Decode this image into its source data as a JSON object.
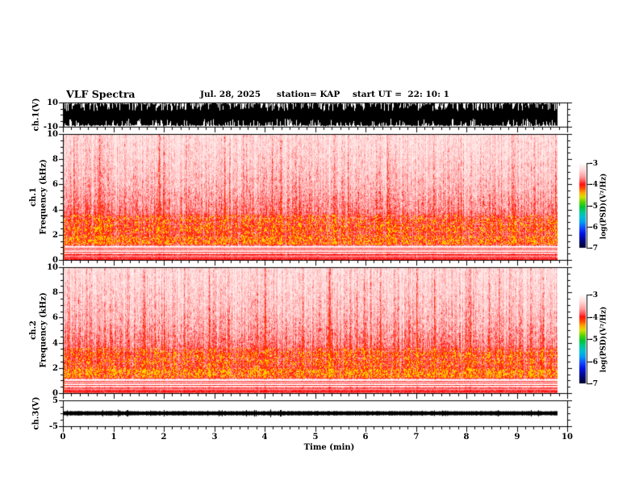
{
  "figure": {
    "title": "VLF Spectra",
    "date": "Jul. 28, 2025",
    "station": "station= KAP",
    "start_ut": "start UT =  22: 10: 1"
  },
  "time_axis": {
    "label": "Time (min)",
    "tick_labels": [
      "0",
      "1",
      "2",
      "3",
      "4",
      "5",
      "6",
      "7",
      "8",
      "9",
      "10"
    ],
    "minutes_total": 10,
    "data_minutes": 9.8,
    "minor_divisions_per_minute": 6
  },
  "panels": [
    {
      "kind": "waveform",
      "channel": "ch.1(V)",
      "ymin": -10,
      "ymax": 10,
      "ytick_labels": [
        "10",
        "-10"
      ],
      "ytick_values": [
        10,
        -10
      ],
      "yminor_values": [
        5,
        0,
        -5
      ]
    },
    {
      "kind": "spectrogram",
      "channel": "ch.1",
      "ylabel": "Frequency (kHz)",
      "ymin": 0,
      "ymax": 10,
      "ytick_labels": [
        "10",
        "8",
        "6",
        "4",
        "2",
        "0"
      ],
      "ytick_values": [
        10,
        8,
        6,
        4,
        2,
        0
      ],
      "yminor_step": 0.5
    },
    {
      "kind": "spectrogram",
      "channel": "ch.2",
      "ylabel": "Frequency (kHz)",
      "ymin": 0,
      "ymax": 10,
      "ytick_labels": [
        "10",
        "8",
        "6",
        "4",
        "2",
        "0"
      ],
      "ytick_values": [
        10,
        8,
        6,
        4,
        2,
        0
      ],
      "yminor_step": 0.5
    },
    {
      "kind": "waveform",
      "channel": "ch.3(V)",
      "ymin": -5,
      "ymax": 5,
      "ytick_labels": [
        "5",
        "-5"
      ],
      "ytick_values": [
        5,
        -5
      ],
      "yminor_values": [
        2.5,
        0,
        -2.5
      ]
    }
  ],
  "colorbar": {
    "label": "log(PSD)(V²/Hz)",
    "tick_labels": [
      "-3",
      "-4",
      "-5",
      "-6",
      "-7"
    ],
    "zmax": -3,
    "zmin": -7,
    "stops": [
      [
        0,
        "#ffffff"
      ],
      [
        0.08,
        "#ffd9d9"
      ],
      [
        0.16,
        "#ff9d9d"
      ],
      [
        0.22,
        "#ff4b4b"
      ],
      [
        0.25,
        "#ff1010"
      ],
      [
        0.3,
        "#ff4d00"
      ],
      [
        0.35,
        "#ffa600"
      ],
      [
        0.4,
        "#d8e000"
      ],
      [
        0.46,
        "#58d400"
      ],
      [
        0.52,
        "#00c432"
      ],
      [
        0.58,
        "#00c894"
      ],
      [
        0.64,
        "#00bcd8"
      ],
      [
        0.7,
        "#009cf0"
      ],
      [
        0.76,
        "#1450ff"
      ],
      [
        0.83,
        "#0014e6"
      ],
      [
        0.9,
        "#000896"
      ],
      [
        1,
        "#000428"
      ]
    ]
  },
  "chart_data": [
    {
      "type": "line",
      "name": "ch.1 waveform",
      "ylabel": "ch.1(V)",
      "xlim": [
        0,
        10
      ],
      "ylim": [
        -10,
        10
      ],
      "data_extent_min": 9.8,
      "description": "broadband noise, envelope fills most of ±10 V",
      "envelope_half_range_v": [
        3,
        10
      ],
      "seed": 101
    },
    {
      "type": "heatmap",
      "name": "ch.1 spectrogram",
      "xlabel": "Time (min)",
      "ylabel": "Frequency (kHz)",
      "zlabel": "log(PSD)(V²/Hz)",
      "xlim": [
        0,
        10
      ],
      "ylim": [
        0,
        10
      ],
      "zlim": [
        -7,
        -3
      ],
      "background_profile": [
        [
          0,
          0.55
        ],
        [
          0.22,
          0.58
        ],
        [
          0.48,
          0.58
        ],
        [
          0.54,
          0.06
        ],
        [
          1.1,
          0.06
        ],
        [
          1.22,
          0.64
        ],
        [
          3.2,
          0.62
        ],
        [
          3.6,
          0.58
        ],
        [
          4.0,
          0.53
        ],
        [
          4.5,
          0.47
        ],
        [
          5,
          0.41
        ],
        [
          5.5,
          0.36
        ],
        [
          6,
          0.32
        ],
        [
          7,
          0.27
        ],
        [
          8,
          0.23
        ],
        [
          9,
          0.2
        ],
        [
          10,
          0.18
        ]
      ],
      "tonal_lines_khz": [
        0.98,
        0.815,
        0.655
      ],
      "speckle_bands": [
        {
          "f": [
            1.25,
            1.95
          ],
          "prob": 0.3
        },
        {
          "f": [
            1.95,
            2.3
          ],
          "prob": 0.1
        },
        {
          "f": [
            2.3,
            3.6
          ],
          "prob": 0.17
        }
      ],
      "vertical_streak_prob": 0.1,
      "seed": 7
    },
    {
      "type": "heatmap",
      "name": "ch.2 spectrogram",
      "xlabel": "Time (min)",
      "ylabel": "Frequency (kHz)",
      "zlabel": "log(PSD)(V²/Hz)",
      "xlim": [
        0,
        10
      ],
      "ylim": [
        0,
        10
      ],
      "zlim": [
        -7,
        -3
      ],
      "background_profile": [
        [
          0,
          0.55
        ],
        [
          0.22,
          0.58
        ],
        [
          0.48,
          0.58
        ],
        [
          0.54,
          0.06
        ],
        [
          1.1,
          0.06
        ],
        [
          1.22,
          0.64
        ],
        [
          3.2,
          0.62
        ],
        [
          3.6,
          0.58
        ],
        [
          4.0,
          0.53
        ],
        [
          4.5,
          0.47
        ],
        [
          5,
          0.41
        ],
        [
          5.5,
          0.36
        ],
        [
          6,
          0.32
        ],
        [
          7,
          0.27
        ],
        [
          8,
          0.23
        ],
        [
          9,
          0.2
        ],
        [
          10,
          0.18
        ]
      ],
      "tonal_lines_khz": [
        0.98,
        0.815,
        0.655
      ],
      "speckle_bands": [
        {
          "f": [
            1.25,
            1.95
          ],
          "prob": 0.34
        },
        {
          "f": [
            1.95,
            2.3
          ],
          "prob": 0.12
        },
        {
          "f": [
            2.3,
            3.6
          ],
          "prob": 0.16
        }
      ],
      "vertical_streak_prob": 0.1,
      "seed": 23
    },
    {
      "type": "line",
      "name": "ch.3 waveform",
      "ylabel": "ch.3(V)",
      "xlim": [
        0,
        10
      ],
      "ylim": [
        -5,
        5
      ],
      "data_extent_min": 9.8,
      "description": "quiet flat trace near 0 V with small spikes",
      "envelope_half_range_v": [
        0.6,
        1.8
      ],
      "seed": 303
    }
  ],
  "spec_colormap": [
    [
      0,
      [
        255,
        255,
        255
      ]
    ],
    [
      0.14,
      [
        255,
        218,
        218
      ]
    ],
    [
      0.3,
      [
        255,
        165,
        165
      ]
    ],
    [
      0.48,
      [
        255,
        105,
        105
      ]
    ],
    [
      0.62,
      [
        255,
        55,
        55
      ]
    ],
    [
      0.75,
      [
        255,
        5,
        5
      ]
    ],
    [
      0.86,
      [
        255,
        95,
        0
      ]
    ],
    [
      1,
      [
        255,
        208,
        0
      ]
    ]
  ]
}
